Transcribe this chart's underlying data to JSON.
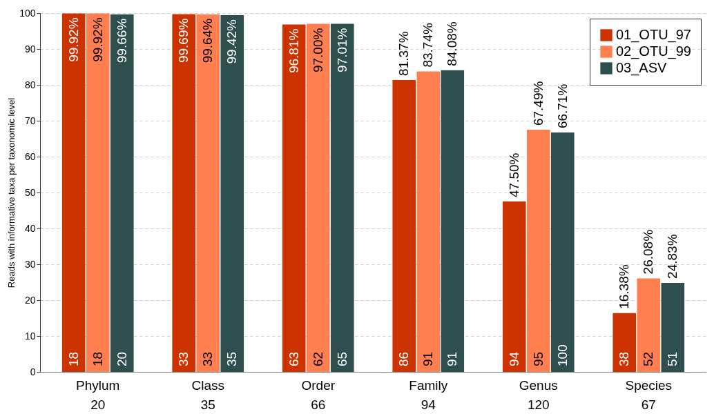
{
  "chart_data": {
    "type": "bar",
    "ylabel": "Reads with informative taxa per taxonomic level",
    "categories": [
      "Phylum\n20",
      "Class\n35",
      "Order\n66",
      "Family\n94",
      "Genus\n120",
      "Species\n67"
    ],
    "series": [
      {
        "name": "01_OTU_97",
        "color": "#cc3300",
        "values": [
          99.92,
          99.69,
          96.81,
          81.37,
          47.5,
          16.38
        ],
        "value_labels": [
          "99.92%",
          "99.69%",
          "96.81%",
          "81.37%",
          "47.50%",
          "16.38%"
        ]
      },
      {
        "name": "02_OTU_99",
        "color": "#ff7f50",
        "values": [
          99.92,
          99.64,
          97.0,
          83.74,
          67.49,
          26.08
        ],
        "value_labels": [
          "99.92%",
          "99.64%",
          "97.00%",
          "83.74%",
          "67.49%",
          "26.08%"
        ]
      },
      {
        "name": "03_ASV",
        "color": "#2f4f4f",
        "values": [
          99.66,
          99.42,
          97.01,
          84.08,
          66.71,
          24.83
        ],
        "value_labels": [
          "99.66%",
          "99.42%",
          "97.01%",
          "84.08%",
          "66.71%",
          "24.83%"
        ]
      }
    ],
    "annotations": [
      "18",
      "18",
      "20",
      "33",
      "33",
      "35",
      "63",
      "62",
      "65",
      "86",
      "91",
      "91",
      "94",
      "95",
      "100",
      "38",
      "52",
      "51"
    ],
    "ylim": [
      0,
      100
    ],
    "yticks": [
      0,
      10,
      20,
      30,
      40,
      50,
      60,
      70,
      80,
      90,
      100
    ],
    "grid": "y",
    "legend": "top right"
  }
}
